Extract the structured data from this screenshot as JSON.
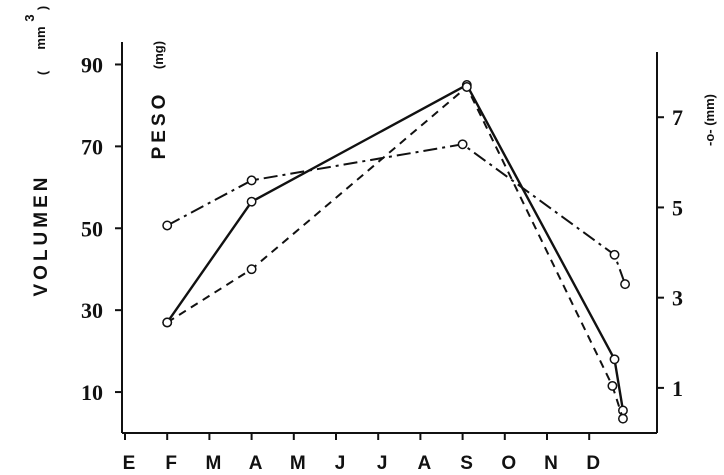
{
  "chart_data": {
    "type": "line",
    "title": "",
    "xlabel": "",
    "months": [
      "E",
      "F",
      "M",
      "A",
      "M",
      "J",
      "J",
      "A",
      "S",
      "O",
      "N",
      "D"
    ],
    "left_axis": {
      "label": "VOLUMEN",
      "unit_open": "(",
      "unit_text": "mm",
      "unit_sup": "3",
      "unit_close": ")",
      "ticks": [
        10,
        30,
        50,
        70,
        90
      ],
      "ylim": [
        0,
        95
      ]
    },
    "inner_axis_label": {
      "label": "PESO",
      "unit": "(mg)"
    },
    "right_axis": {
      "label": "-o- (mm)",
      "ticks": [
        1,
        3,
        5,
        7
      ],
      "ylim": [
        0,
        9
      ]
    },
    "series": [
      {
        "style": "solid",
        "axis": "left",
        "x": [
          1.0,
          3.0,
          8.1,
          11.6,
          11.8
        ],
        "y": [
          27,
          56.5,
          85,
          18,
          5.5
        ]
      },
      {
        "style": "dashed",
        "axis": "left",
        "x": [
          1.0,
          3.0,
          8.1,
          11.55,
          11.8
        ],
        "y": [
          27,
          40,
          84.5,
          11.5,
          3.5
        ]
      },
      {
        "style": "dash-dot",
        "axis": "right",
        "x": [
          1.0,
          3.0,
          8.0,
          11.6,
          11.85
        ],
        "y": [
          4.6,
          5.6,
          6.4,
          3.95,
          3.3
        ]
      }
    ],
    "grid": false,
    "legend": "none"
  }
}
